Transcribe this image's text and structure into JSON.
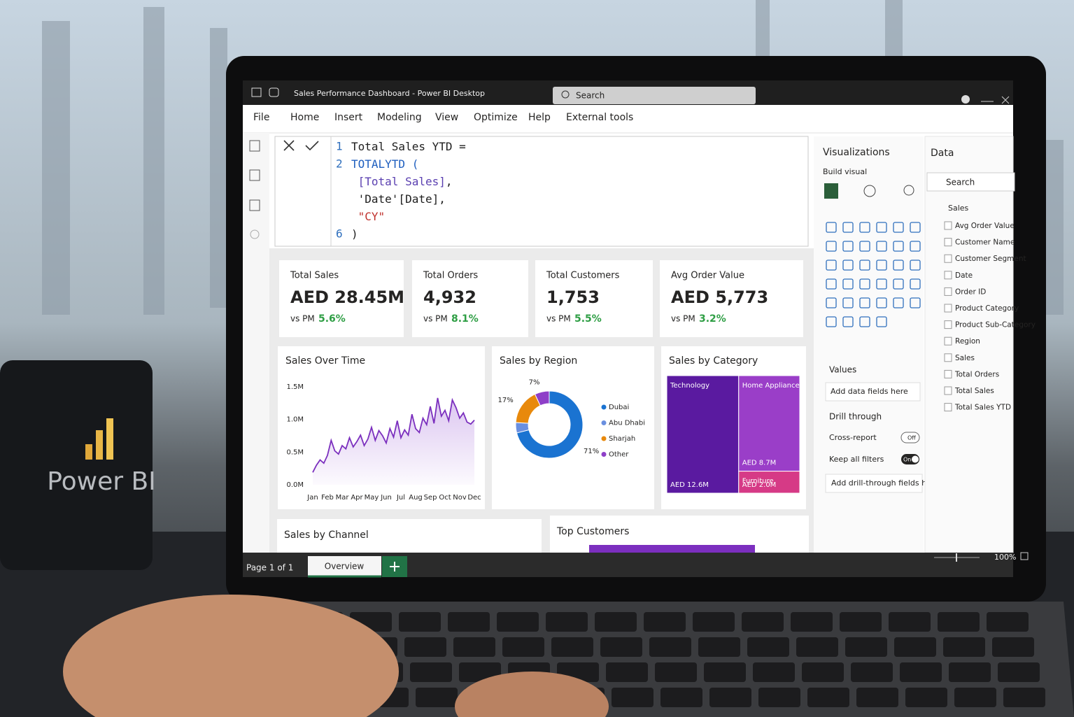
{
  "window": {
    "title": "Sales Performance Dashboard - Power BI Desktop",
    "search": "Search"
  },
  "mug_label": "Power BI",
  "menu": [
    "File",
    "Home",
    "Insert",
    "Modeling",
    "View",
    "Optimize",
    "Help",
    "External tools"
  ],
  "formula": {
    "lines": [
      {
        "number": "1",
        "tokens": [
          {
            "text": "Total Sales YTD =",
            "color": "#1e1e1e"
          }
        ]
      },
      {
        "number": "2",
        "tokens": [
          {
            "text": "TOTALYTD (",
            "color": "#1f5fbf"
          }
        ]
      },
      {
        "tokens": [
          {
            "text": " [Total Sales]",
            "color": "#5a3fb0"
          },
          {
            "text": ",",
            "color": "#1e1e1e"
          }
        ]
      },
      {
        "tokens": [
          {
            "text": " 'Date'[Date],",
            "color": "#1e1e1e"
          }
        ]
      },
      {
        "tokens": [
          {
            "text": " \"CY\"",
            "color": "#c0302c"
          }
        ]
      },
      {
        "number": "6",
        "tokens": [
          {
            "text": ")",
            "color": "#1e1e1e"
          }
        ]
      }
    ]
  },
  "kpis": [
    {
      "title": "Total Sales",
      "value": "AED 28.45M",
      "compare": "vs PM",
      "change": "5.6%"
    },
    {
      "title": "Total Orders",
      "value": "4,932",
      "compare": "vs PM",
      "change": "8.1%"
    },
    {
      "title": "Total Customers",
      "value": "1,753",
      "compare": "vs PM",
      "change": "5.5%"
    },
    {
      "title": "Avg Order Value",
      "value": "AED 5,773",
      "compare": "vs PM",
      "change": "3.2%"
    }
  ],
  "chart_data": [
    {
      "type": "line",
      "title": "Sales Over Time",
      "x": [
        0,
        0.25,
        0.5,
        0.75,
        1,
        1.25,
        1.5,
        1.75,
        2,
        2.25,
        2.5,
        2.75,
        3,
        3.25,
        3.5,
        3.75,
        4,
        4.25,
        4.5,
        4.75,
        5,
        5.25,
        5.5,
        5.75,
        6,
        6.25,
        6.5,
        6.75,
        7,
        7.25,
        7.5,
        7.75,
        8,
        8.25,
        8.5,
        8.75,
        9,
        9.25,
        9.5,
        9.75,
        10,
        10.25,
        10.5,
        10.75,
        11
      ],
      "series": [
        {
          "name": "Sales",
          "color": "#7b2fbe",
          "values": [
            190000,
            300000,
            380000,
            330000,
            450000,
            680000,
            520000,
            470000,
            600000,
            550000,
            720000,
            580000,
            660000,
            760000,
            600000,
            700000,
            880000,
            680000,
            830000,
            750000,
            640000,
            860000,
            730000,
            980000,
            720000,
            840000,
            760000,
            1080000,
            860000,
            800000,
            1020000,
            920000,
            1200000,
            940000,
            1330000,
            1050000,
            1140000,
            980000,
            1300000,
            1180000,
            1020000,
            1100000,
            960000,
            930000,
            990000
          ]
        }
      ],
      "xlim": [
        0,
        11
      ],
      "xticks": [
        {
          "value": 0,
          "label": "Jan"
        },
        {
          "value": 1,
          "label": "Feb"
        },
        {
          "value": 2,
          "label": "Mar"
        },
        {
          "value": 3,
          "label": "Apr"
        },
        {
          "value": 4,
          "label": "May"
        },
        {
          "value": 5,
          "label": "Jun"
        },
        {
          "value": 6,
          "label": "Jul"
        },
        {
          "value": 7,
          "label": "Aug"
        },
        {
          "value": 8,
          "label": "Sep"
        },
        {
          "value": 9,
          "label": "Oct"
        },
        {
          "value": 10,
          "label": "Nov"
        },
        {
          "value": 11,
          "label": "Dec"
        }
      ],
      "ylim": [
        0,
        1500000
      ],
      "yticks": [
        {
          "value": 0,
          "label": "0.0M"
        },
        {
          "value": 500000,
          "label": "0.5M"
        },
        {
          "value": 1000000,
          "label": "1.0M"
        },
        {
          "value": 1500000,
          "label": "1.5M"
        }
      ]
    },
    {
      "type": "donut",
      "title": "Sales by Region",
      "categories": [
        "Dubai",
        "Abu Dhabi",
        "Sharjah",
        "Other"
      ],
      "values": [
        71,
        5,
        17,
        7
      ],
      "value_labels": [
        "71%",
        null,
        "17%",
        "7%"
      ],
      "colors": [
        "#1a73d1",
        "#6a8fe0",
        "#e8890c",
        "#8e3fc8"
      ]
    },
    {
      "type": "treemap",
      "title": "Sales by Category",
      "categories": [
        "Technology",
        "Home Appliances",
        "Furniture"
      ],
      "values": [
        12600000,
        8700000,
        2000000
      ],
      "value_labels": [
        "AED 12.6M",
        "AED 8.7M",
        "AED 2.0M"
      ],
      "colors": [
        "#5a1aa0",
        "#9a3ec8",
        "#d63a86"
      ]
    }
  ],
  "lower_visuals": [
    "Sales by Channel",
    "Top Customers"
  ],
  "visualizations": {
    "title": "Visualizations",
    "build": "Build visual",
    "values_label": "Values",
    "values_placeholder": "Add data fields here",
    "drill_through": "Drill through",
    "cross_report": "Cross-report",
    "cross_report_state": "Off",
    "keep_filters": "Keep all filters",
    "keep_filters_state": "On",
    "drill_placeholder": "Add drill-through fields here"
  },
  "data_pane": {
    "title": "Data",
    "search": "Search",
    "table": "Sales",
    "fields": [
      "Avg Order Value",
      "Customer Name",
      "Customer Segment",
      "Date",
      "Order ID",
      "Product Category",
      "Product Sub-Category",
      "Region",
      "Sales",
      "Total Orders",
      "Total Sales",
      "Total Sales YTD"
    ]
  },
  "status": {
    "page": "Page 1 of 1",
    "tab": "Overview",
    "zoom": "100%"
  }
}
